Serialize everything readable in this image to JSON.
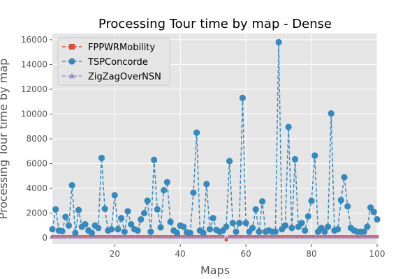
{
  "chart_data": {
    "type": "line",
    "title": "Processing Tour time by map - Dense",
    "xlabel": "Maps",
    "ylabel": "Processing Tour time by map",
    "xlim": [
      1,
      100
    ],
    "ylim": [
      -500,
      16500
    ],
    "xticks": [
      20,
      40,
      60,
      80,
      100
    ],
    "yticks": [
      0,
      2000,
      4000,
      6000,
      8000,
      10000,
      12000,
      14000,
      16000
    ],
    "grid": true,
    "legend_position": "top-left",
    "x": [
      1,
      2,
      3,
      4,
      5,
      6,
      7,
      8,
      9,
      10,
      11,
      12,
      13,
      14,
      15,
      16,
      17,
      18,
      19,
      20,
      21,
      22,
      23,
      24,
      25,
      26,
      27,
      28,
      29,
      30,
      31,
      32,
      33,
      34,
      35,
      36,
      37,
      38,
      39,
      40,
      41,
      42,
      43,
      44,
      45,
      46,
      47,
      48,
      49,
      50,
      51,
      52,
      53,
      54,
      55,
      56,
      57,
      58,
      59,
      60,
      61,
      62,
      63,
      64,
      65,
      66,
      67,
      68,
      69,
      70,
      71,
      72,
      73,
      74,
      75,
      76,
      77,
      78,
      79,
      80,
      81,
      82,
      83,
      84,
      85,
      86,
      87,
      88,
      89,
      90,
      91,
      92,
      93,
      94,
      95,
      96,
      97,
      98,
      99,
      100
    ],
    "series": [
      {
        "name": "FPPWRMobility",
        "color": "#e24a33",
        "marker": "square",
        "values": [
          100,
          100,
          100,
          100,
          100,
          100,
          100,
          100,
          100,
          100,
          100,
          100,
          100,
          100,
          100,
          100,
          100,
          100,
          100,
          100,
          100,
          100,
          100,
          100,
          100,
          100,
          100,
          100,
          100,
          100,
          100,
          100,
          100,
          100,
          100,
          100,
          100,
          100,
          100,
          100,
          100,
          100,
          100,
          100,
          100,
          100,
          100,
          100,
          100,
          100,
          100,
          100,
          100,
          -150,
          100,
          100,
          100,
          100,
          100,
          100,
          100,
          100,
          100,
          100,
          100,
          100,
          100,
          100,
          100,
          100,
          100,
          100,
          100,
          100,
          100,
          100,
          100,
          100,
          100,
          100,
          100,
          100,
          100,
          100,
          100,
          100,
          100,
          100,
          100,
          100,
          100,
          100,
          100,
          100,
          100,
          100,
          100,
          100,
          100,
          100
        ]
      },
      {
        "name": "TSPConcorde",
        "color": "#348abd",
        "marker": "circle",
        "values": [
          700,
          2300,
          600,
          550,
          1700,
          1000,
          4250,
          400,
          2250,
          900,
          1100,
          600,
          400,
          1000,
          800,
          6450,
          2350,
          600,
          700,
          3450,
          700,
          1600,
          500,
          2150,
          1100,
          700,
          600,
          1500,
          2000,
          3000,
          500,
          6300,
          2300,
          850,
          3850,
          4500,
          1300,
          600,
          400,
          1000,
          900,
          450,
          400,
          3650,
          8500,
          600,
          400,
          4350,
          700,
          1600,
          650,
          500,
          600,
          900,
          6200,
          1200,
          500,
          1200,
          11300,
          1200,
          500,
          800,
          2300,
          500,
          2950,
          500,
          600,
          500,
          500,
          15800,
          700,
          1000,
          8950,
          800,
          6350,
          900,
          1200,
          600,
          1750,
          3000,
          6650,
          500,
          800,
          500,
          900,
          10050,
          600,
          700,
          3050,
          4900,
          2550,
          800,
          600,
          500,
          500,
          500,
          900,
          2450,
          2100,
          1500
        ]
      },
      {
        "name": "ZigZagOverNSN",
        "color": "#988ed5",
        "marker": "triangle",
        "values": [
          50,
          50,
          50,
          50,
          50,
          50,
          50,
          50,
          50,
          50,
          50,
          50,
          50,
          50,
          50,
          50,
          50,
          50,
          50,
          50,
          50,
          50,
          50,
          50,
          50,
          50,
          50,
          50,
          50,
          50,
          50,
          50,
          50,
          50,
          50,
          50,
          50,
          50,
          50,
          50,
          50,
          50,
          50,
          50,
          50,
          50,
          50,
          50,
          50,
          50,
          50,
          50,
          50,
          50,
          50,
          50,
          50,
          50,
          50,
          50,
          50,
          50,
          50,
          50,
          50,
          50,
          50,
          50,
          50,
          50,
          50,
          50,
          50,
          50,
          50,
          50,
          50,
          50,
          50,
          50,
          50,
          50,
          50,
          50,
          50,
          50,
          50,
          50,
          50,
          50,
          50,
          50,
          50,
          50,
          50,
          50,
          50,
          50,
          50,
          50
        ]
      }
    ]
  }
}
